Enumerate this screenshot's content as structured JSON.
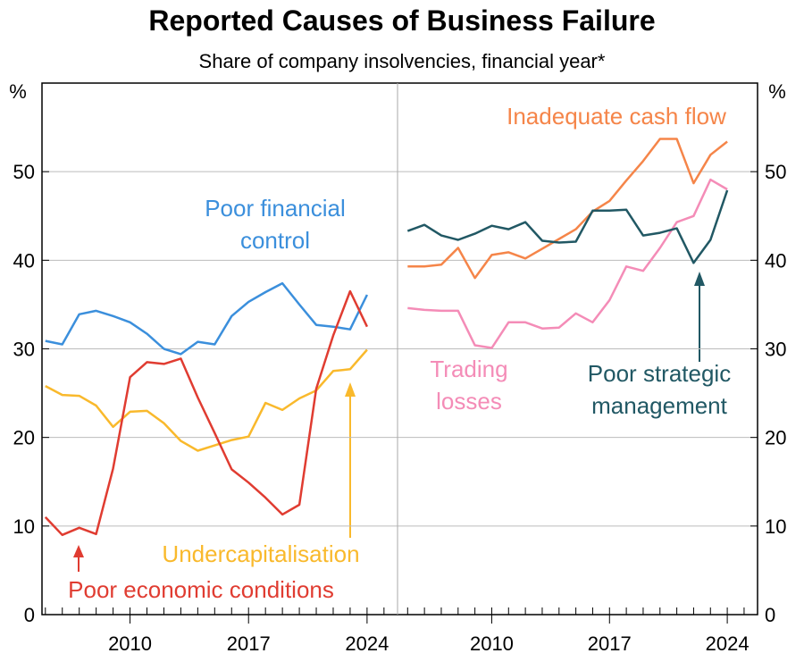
{
  "title": "Reported Causes of Business Failure",
  "subtitle": "Share of company insolvencies, financial year*",
  "y_label": "%",
  "chart_data": [
    {
      "type": "line",
      "ylim": [
        0,
        60
      ],
      "yticks": [
        0,
        10,
        20,
        30,
        40,
        50
      ],
      "xlim": [
        2004.8,
        2025.8
      ],
      "xticks": [
        2010,
        2017,
        2024
      ],
      "grid": true,
      "y_axis_side": "left",
      "x": [
        2005,
        2006,
        2007,
        2008,
        2009,
        2010,
        2011,
        2012,
        2013,
        2014,
        2015,
        2016,
        2017,
        2018,
        2019,
        2020,
        2021,
        2022,
        2023,
        2024
      ],
      "series": [
        {
          "name": "Poor financial control",
          "color": "#3b8fdc",
          "values": [
            30.9,
            30.5,
            33.9,
            34.3,
            33.7,
            33.0,
            31.7,
            30.0,
            29.4,
            30.8,
            30.5,
            33.7,
            35.3,
            36.4,
            37.4,
            35.0,
            32.7,
            32.5,
            32.2,
            36.1
          ]
        },
        {
          "name": "Undercapitalisation",
          "color": "#f9b92c",
          "values": [
            25.8,
            24.8,
            24.7,
            23.6,
            21.2,
            22.9,
            23.0,
            21.6,
            19.6,
            18.5,
            19.1,
            19.7,
            20.1,
            23.9,
            23.1,
            24.4,
            25.3,
            27.5,
            27.7,
            29.9
          ]
        },
        {
          "name": "Poor economic conditions",
          "color": "#e03c31",
          "values": [
            11.0,
            9.0,
            9.8,
            9.1,
            16.5,
            26.8,
            28.5,
            28.3,
            28.9,
            24.5,
            20.5,
            16.4,
            14.9,
            13.2,
            11.3,
            12.4,
            25.5,
            31.5,
            36.5,
            32.5
          ]
        }
      ]
    },
    {
      "type": "line",
      "ylim": [
        0,
        60
      ],
      "yticks": [
        0,
        10,
        20,
        30,
        40,
        50
      ],
      "xlim": [
        2004.4,
        2025.8
      ],
      "xticks": [
        2010,
        2017,
        2024
      ],
      "grid": true,
      "y_axis_side": "right",
      "x": [
        2005,
        2006,
        2007,
        2008,
        2009,
        2010,
        2011,
        2012,
        2013,
        2014,
        2015,
        2016,
        2017,
        2018,
        2019,
        2020,
        2021,
        2022,
        2023,
        2024
      ],
      "series": [
        {
          "name": "Inadequate cash flow",
          "color": "#f58549",
          "values": [
            39.3,
            39.3,
            39.5,
            41.4,
            38.0,
            40.6,
            40.9,
            40.2,
            41.3,
            42.4,
            43.5,
            45.5,
            46.7,
            49.0,
            51.2,
            53.7,
            53.7,
            48.7,
            51.9,
            53.4
          ]
        },
        {
          "name": "Trading losses",
          "color": "#f48cb7",
          "values": [
            34.6,
            34.4,
            34.3,
            34.3,
            30.4,
            30.1,
            33.0,
            33.0,
            32.3,
            32.4,
            34.0,
            33.0,
            35.5,
            39.3,
            38.8,
            41.4,
            44.3,
            45.0,
            49.1,
            48.0
          ]
        },
        {
          "name": "Poor strategic management",
          "color": "#215864",
          "values": [
            43.3,
            44.0,
            42.8,
            42.3,
            43.0,
            43.9,
            43.5,
            44.3,
            42.2,
            42.0,
            42.1,
            45.6,
            45.6,
            45.7,
            42.8,
            43.1,
            43.6,
            39.7,
            42.3,
            47.9
          ]
        }
      ]
    }
  ]
}
